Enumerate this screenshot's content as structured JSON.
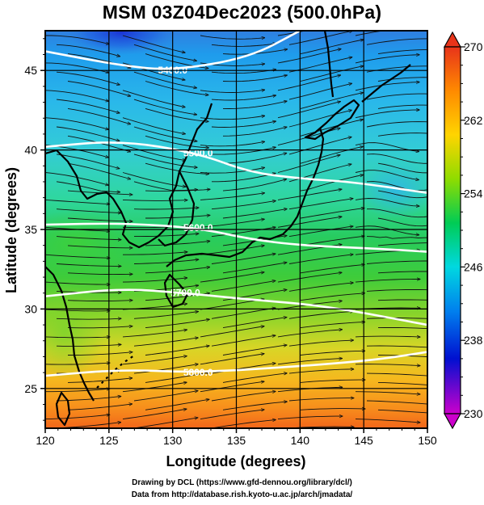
{
  "title": "MSM 03Z04Dec2023 (500.0hPa)",
  "x_axis": {
    "label": "Longitude (degrees)",
    "range": [
      120,
      150
    ],
    "ticks": [
      "120",
      "125",
      "130",
      "135",
      "140",
      "145",
      "150"
    ]
  },
  "y_axis": {
    "label": "Latitude  (degrees)",
    "range": [
      22.5,
      47.5
    ],
    "ticks": [
      "25",
      "30",
      "35",
      "40",
      "45"
    ]
  },
  "colorbar": {
    "range": [
      230,
      270
    ],
    "ticks": [
      "230",
      "238",
      "246",
      "254",
      "262",
      "270"
    ],
    "colors": [
      "#cc00cc",
      "#0000cc",
      "#0077ee",
      "#00ccee",
      "#00cc66",
      "#88dd00",
      "#ffcc00",
      "#ff8800",
      "#ee3300"
    ]
  },
  "contour_labels": [
    "5400.0",
    "5500.0",
    "5600.0",
    "5700.0",
    "5800.0"
  ],
  "credits": {
    "line1": "Drawing by DCL (https://www.gfd-dennou.org/library/dcl/)",
    "line2": "Data from http://database.rish.kyoto-u.ac.jp/arch/jmadata/"
  },
  "chart_data": {
    "type": "heatmap",
    "title": "MSM 03Z04Dec2023 (500.0hPa)",
    "xlabel": "Longitude (degrees)",
    "ylabel": "Latitude  (degrees)",
    "xlim": [
      120,
      150
    ],
    "ylim": [
      22.5,
      47.5
    ],
    "colorbar_range": [
      230,
      270
    ],
    "field": "temperature (shaded) with geopotential height contours and wind streamlines",
    "contours": [
      {
        "label": "5400.0",
        "lat_at_lon": [
          [
            120,
            46.2
          ],
          [
            126,
            45.3
          ],
          [
            130,
            45.0
          ],
          [
            136,
            45.8
          ],
          [
            140,
            47.5
          ]
        ]
      },
      {
        "label": "5500.0",
        "lat_at_lon": [
          [
            120,
            40.2
          ],
          [
            126,
            40.6
          ],
          [
            132,
            39.8
          ],
          [
            136,
            38.6
          ],
          [
            140,
            38.2
          ],
          [
            144,
            38.0
          ],
          [
            150,
            37.3
          ]
        ]
      },
      {
        "label": "5600.0",
        "lat_at_lon": [
          [
            120,
            35.3
          ],
          [
            126,
            35.4
          ],
          [
            132,
            35.1
          ],
          [
            136,
            34.4
          ],
          [
            140,
            34.0
          ],
          [
            146,
            33.8
          ],
          [
            150,
            33.6
          ]
        ]
      },
      {
        "label": "5700.0",
        "lat_at_lon": [
          [
            120,
            30.8
          ],
          [
            126,
            31.3
          ],
          [
            131,
            31.0
          ],
          [
            136,
            30.6
          ],
          [
            142,
            30.2
          ],
          [
            150,
            29.0
          ]
        ]
      },
      {
        "label": "5800.0",
        "lat_at_lon": [
          [
            120,
            25.8
          ],
          [
            126,
            26.2
          ],
          [
            132,
            26.0
          ],
          [
            140,
            26.4
          ],
          [
            146,
            26.8
          ],
          [
            150,
            27.3
          ]
        ]
      }
    ]
  }
}
